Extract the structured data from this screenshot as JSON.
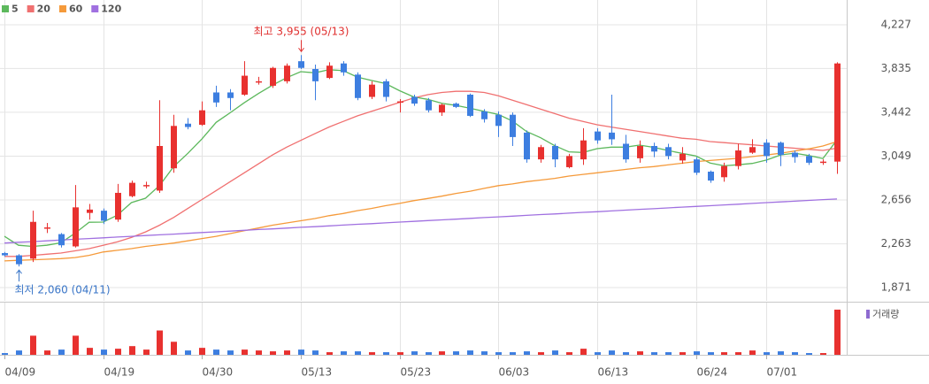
{
  "chart_data": {
    "type": "candlestick",
    "categories": [
      "04/09",
      null,
      null,
      null,
      null,
      null,
      null,
      "04/19",
      null,
      null,
      null,
      null,
      null,
      null,
      "04/30",
      null,
      null,
      null,
      null,
      null,
      null,
      "05/13",
      null,
      null,
      null,
      null,
      null,
      null,
      "05/23",
      null,
      null,
      null,
      null,
      null,
      null,
      "06/03",
      null,
      null,
      null,
      null,
      null,
      null,
      "06/13",
      null,
      null,
      null,
      null,
      null,
      null,
      "06/24",
      null,
      null,
      null,
      null,
      "07/01",
      null,
      null,
      null,
      null,
      null
    ],
    "open": [
      2180,
      2160,
      2130,
      2400,
      2350,
      2240,
      2540,
      2560,
      2480,
      2690,
      2780,
      2740,
      2940,
      3340,
      3330,
      3620,
      3620,
      3600,
      3710,
      3680,
      3720,
      3900,
      3830,
      3750,
      3880,
      3780,
      3580,
      3720,
      3530,
      3580,
      3550,
      3440,
      3520,
      3600,
      3450,
      3420,
      3420,
      3260,
      3020,
      3140,
      2950,
      3020,
      3270,
      3260,
      3160,
      3030,
      3140,
      3130,
      3010,
      3020,
      2910,
      2860,
      2960,
      3080,
      3170,
      3170,
      3080,
      3050,
      2990,
      3000
    ],
    "high": [
      2190,
      2170,
      2560,
      2450,
      2360,
      2790,
      2620,
      2580,
      2800,
      2830,
      2820,
      3550,
      3420,
      3390,
      3540,
      3680,
      3650,
      3900,
      3760,
      3850,
      3880,
      3955,
      3870,
      3890,
      3900,
      3800,
      3720,
      3740,
      3560,
      3600,
      3570,
      3520,
      3530,
      3610,
      3470,
      3450,
      3440,
      3280,
      3150,
      3160,
      3070,
      3300,
      3300,
      3600,
      3240,
      3190,
      3170,
      3160,
      3130,
      3040,
      2920,
      2990,
      3160,
      3200,
      3200,
      3180,
      3100,
      3070,
      3020,
      3890
    ],
    "low": [
      2150,
      2060,
      2100,
      2360,
      2230,
      2230,
      2480,
      2440,
      2460,
      2680,
      2760,
      2720,
      2900,
      3290,
      3320,
      3490,
      3460,
      3590,
      3690,
      3660,
      3700,
      3830,
      3550,
      3740,
      3770,
      3550,
      3560,
      3540,
      3440,
      3500,
      3440,
      3410,
      3480,
      3400,
      3350,
      3220,
      3140,
      2990,
      2990,
      2950,
      2940,
      2970,
      3160,
      3150,
      2990,
      2990,
      3040,
      3020,
      2980,
      2880,
      2810,
      2820,
      2930,
      3070,
      2990,
      2960,
      2990,
      2970,
      2970,
      2890
    ],
    "close": [
      2160,
      2080,
      2460,
      2410,
      2250,
      2590,
      2570,
      2470,
      2720,
      2810,
      2790,
      3140,
      3320,
      3310,
      3460,
      3530,
      3570,
      3770,
      3720,
      3840,
      3860,
      3840,
      3720,
      3860,
      3800,
      3570,
      3690,
      3580,
      3540,
      3520,
      3460,
      3510,
      3490,
      3410,
      3380,
      3320,
      3220,
      3020,
      3130,
      3020,
      3050,
      3190,
      3190,
      3200,
      3020,
      3140,
      3090,
      3050,
      3070,
      2900,
      2830,
      2960,
      3100,
      3130,
      3050,
      3060,
      3040,
      2990,
      3000,
      3880
    ],
    "up_color": "#e8312f",
    "down_color": "#3d7ee0",
    "series": [
      {
        "name": "5",
        "color": "#5cb85c",
        "values": [
          2330,
          2250,
          2240,
          2250,
          2272,
          2358,
          2456,
          2458,
          2520,
          2632,
          2672,
          2786,
          2956,
          3074,
          3204,
          3352,
          3438,
          3528,
          3610,
          3686,
          3752,
          3806,
          3796,
          3824,
          3816,
          3758,
          3728,
          3700,
          3636,
          3580,
          3558,
          3522,
          3504,
          3478,
          3450,
          3422,
          3364,
          3270,
          3214,
          3142,
          3088,
          3082,
          3116,
          3130,
          3130,
          3148,
          3128,
          3100,
          3074,
          3050,
          2988,
          2962,
          2972,
          2984,
          3014,
          3060,
          3076,
          3054,
          3028,
          3194
        ]
      },
      {
        "name": "20",
        "color": "#f07070",
        "values": [
          2150,
          2150,
          2160,
          2170,
          2180,
          2200,
          2220,
          2250,
          2280,
          2320,
          2370,
          2430,
          2500,
          2580,
          2660,
          2740,
          2820,
          2900,
          2980,
          3060,
          3130,
          3190,
          3250,
          3310,
          3360,
          3410,
          3450,
          3490,
          3530,
          3570,
          3600,
          3620,
          3630,
          3630,
          3620,
          3590,
          3550,
          3510,
          3470,
          3430,
          3390,
          3360,
          3330,
          3310,
          3290,
          3270,
          3250,
          3230,
          3210,
          3200,
          3180,
          3170,
          3160,
          3150,
          3140,
          3130,
          3120,
          3110,
          3100,
          3120
        ]
      },
      {
        "name": "60",
        "color": "#f59a3a",
        "values": [
          2110,
          2115,
          2120,
          2125,
          2130,
          2140,
          2160,
          2190,
          2205,
          2220,
          2240,
          2255,
          2270,
          2290,
          2310,
          2330,
          2355,
          2380,
          2405,
          2430,
          2450,
          2470,
          2490,
          2515,
          2535,
          2560,
          2580,
          2605,
          2625,
          2650,
          2670,
          2690,
          2715,
          2735,
          2760,
          2785,
          2800,
          2820,
          2835,
          2850,
          2870,
          2885,
          2900,
          2915,
          2930,
          2945,
          2955,
          2970,
          2985,
          3000,
          3010,
          3020,
          3030,
          3045,
          3060,
          3075,
          3095,
          3115,
          3140,
          3180
        ]
      },
      {
        "name": "120",
        "color": "#a070e0",
        "values": [
          2270,
          2277,
          2283,
          2290,
          2297,
          2304,
          2310,
          2317,
          2324,
          2330,
          2337,
          2344,
          2350,
          2357,
          2364,
          2371,
          2377,
          2384,
          2391,
          2397,
          2404,
          2411,
          2417,
          2424,
          2431,
          2438,
          2444,
          2451,
          2458,
          2464,
          2471,
          2478,
          2484,
          2491,
          2498,
          2505,
          2511,
          2518,
          2525,
          2531,
          2538,
          2545,
          2551,
          2558,
          2565,
          2572,
          2578,
          2585,
          2592,
          2598,
          2605,
          2612,
          2618,
          2625,
          2632,
          2639,
          2645,
          2652,
          2659,
          2665
        ]
      }
    ],
    "ylim": [
      1752,
      4409
    ],
    "yticks": [
      {
        "value": 1871,
        "label": "1,871"
      },
      {
        "value": 2263,
        "label": "2,263"
      },
      {
        "value": 2656,
        "label": "2,656"
      },
      {
        "value": 3049,
        "label": "3,049"
      },
      {
        "value": 3442,
        "label": "3,442"
      },
      {
        "value": 3835,
        "label": "3,835"
      },
      {
        "value": 4227,
        "label": "4,227"
      }
    ],
    "grid": true,
    "annotations": [
      {
        "text": "최고 3,955 (05/13)",
        "value": 3955,
        "color": "#e0302f"
      },
      {
        "text": "최저 2,060 (04/11)",
        "value": 2060,
        "color": "#3a76c8"
      }
    ],
    "volume": {
      "name": "거래량",
      "color": "#8e6bd0",
      "ylim": [
        0,
        550
      ],
      "values": [
        20,
        50,
        220,
        50,
        60,
        220,
        80,
        60,
        70,
        100,
        60,
        280,
        150,
        50,
        80,
        60,
        50,
        60,
        50,
        40,
        50,
        60,
        50,
        30,
        40,
        40,
        30,
        30,
        30,
        40,
        30,
        40,
        40,
        50,
        40,
        30,
        30,
        40,
        30,
        50,
        30,
        70,
        30,
        50,
        30,
        40,
        30,
        30,
        30,
        40,
        30,
        30,
        30,
        50,
        30,
        40,
        30,
        20,
        20,
        520
      ]
    }
  }
}
